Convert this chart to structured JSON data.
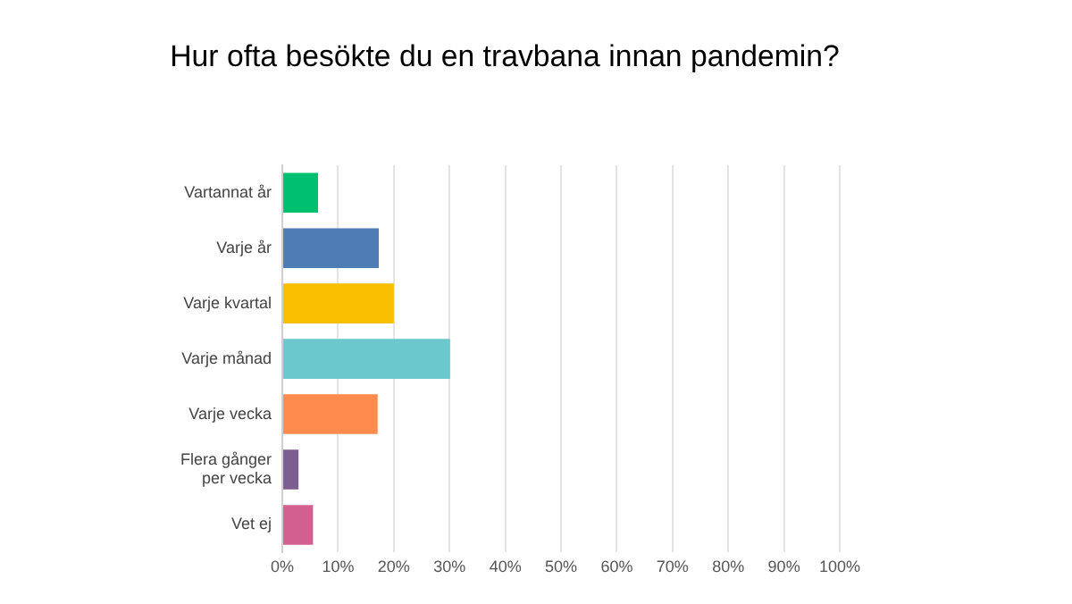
{
  "chart_data": {
    "type": "bar",
    "orientation": "horizontal",
    "title": "Hur ofta besökte du en travbana innan pandemin?",
    "categories": [
      "Vartannat år",
      "Varje år",
      "Varje kvartal",
      "Varje månad",
      "Varje vecka",
      "Flera gånger per vecka",
      "Vet ej"
    ],
    "values": [
      6.4,
      17.3,
      20,
      30.1,
      17.1,
      2.9,
      5.5
    ],
    "colors": [
      "#00bf6f",
      "#507cb6",
      "#f9be00",
      "#6bc8cd",
      "#ff8b4f",
      "#7d5e90",
      "#d25f90"
    ],
    "xlim": [
      0,
      100
    ],
    "xticks": [
      {
        "value": 0,
        "label": "0%"
      },
      {
        "value": 10,
        "label": "10%"
      },
      {
        "value": 20,
        "label": "20%"
      },
      {
        "value": 30,
        "label": "30%"
      },
      {
        "value": 40,
        "label": "40%"
      },
      {
        "value": 50,
        "label": "50%"
      },
      {
        "value": 60,
        "label": "60%"
      },
      {
        "value": 70,
        "label": "70%"
      },
      {
        "value": 80,
        "label": "80%"
      },
      {
        "value": 90,
        "label": "90%"
      },
      {
        "value": 100,
        "label": "100%"
      }
    ],
    "grid": "x",
    "legend": false
  }
}
